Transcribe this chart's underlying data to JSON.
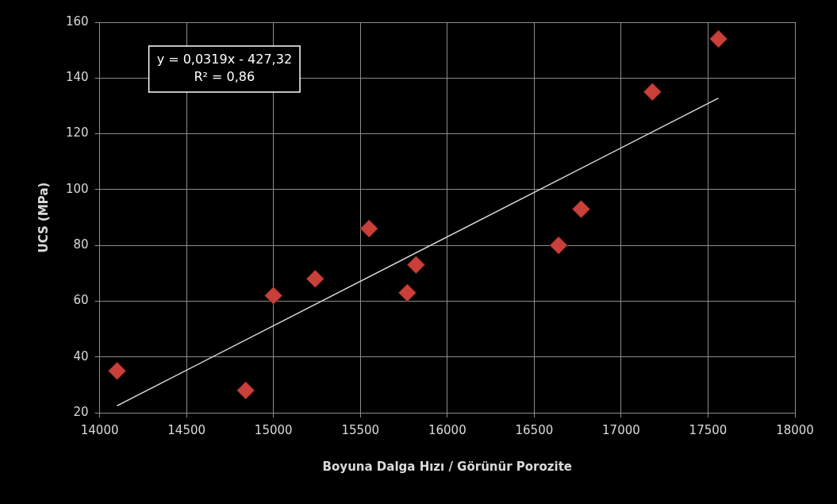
{
  "chart_data": {
    "type": "scatter",
    "xlabel": "Boyuna Dalga Hızı / Görünür Porozite",
    "ylabel": "UCS (MPa)",
    "xlim": [
      14000,
      18000
    ],
    "xticks": [
      14000,
      14500,
      15000,
      15500,
      16000,
      16500,
      17000,
      17500,
      18000
    ],
    "ylim": [
      20,
      160
    ],
    "yticks": [
      20,
      40,
      60,
      80,
      100,
      120,
      140,
      160
    ],
    "grid": true,
    "legend": false,
    "marker": "diamond",
    "annotations": [
      "y = 0,0319x - 427,32",
      "R² = 0,86"
    ],
    "series": [
      {
        "color": "#c9403a",
        "x": [
          14100,
          14840,
          15000,
          15240,
          15550,
          15770,
          15820,
          16640,
          16770,
          17180,
          17560
        ],
        "values": [
          35,
          28,
          62,
          68,
          86,
          63,
          73,
          80,
          93,
          135,
          154
        ]
      },
      {
        "type": "line",
        "color": "#d9d9d9",
        "marker": "none",
        "line_style": "solid",
        "x": [
          14100,
          17560
        ],
        "values": [
          22.5,
          132.8
        ]
      }
    ]
  }
}
